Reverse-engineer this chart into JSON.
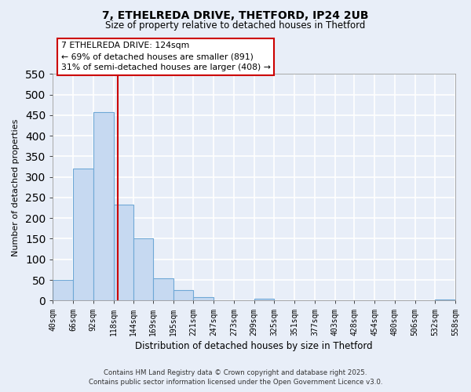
{
  "title": "7, ETHELREDA DRIVE, THETFORD, IP24 2UB",
  "subtitle": "Size of property relative to detached houses in Thetford",
  "xlabel": "Distribution of detached houses by size in Thetford",
  "ylabel": "Number of detached properties",
  "bar_edges": [
    40,
    66,
    92,
    118,
    144,
    169,
    195,
    221,
    247,
    273,
    299,
    325,
    351,
    377,
    403,
    428,
    454,
    480,
    506,
    532,
    558
  ],
  "bar_heights": [
    50,
    320,
    457,
    233,
    150,
    54,
    25,
    9,
    0,
    0,
    5,
    0,
    0,
    0,
    0,
    0,
    0,
    0,
    0,
    2
  ],
  "bar_color": "#c6d9f1",
  "bar_edgecolor": "#6fa8d6",
  "vline_x": 124,
  "vline_color": "#cc0000",
  "ylim": [
    0,
    550
  ],
  "yticks": [
    0,
    50,
    100,
    150,
    200,
    250,
    300,
    350,
    400,
    450,
    500,
    550
  ],
  "annotation_line1": "7 ETHELREDA DRIVE: 124sqm",
  "annotation_line2": "← 69% of detached houses are smaller (891)",
  "annotation_line3": "31% of semi-detached houses are larger (408) →",
  "footer_line1": "Contains HM Land Registry data © Crown copyright and database right 2025.",
  "footer_line2": "Contains public sector information licensed under the Open Government Licence v3.0.",
  "tick_labels": [
    "40sqm",
    "66sqm",
    "92sqm",
    "118sqm",
    "144sqm",
    "169sqm",
    "195sqm",
    "221sqm",
    "247sqm",
    "273sqm",
    "299sqm",
    "325sqm",
    "351sqm",
    "377sqm",
    "403sqm",
    "428sqm",
    "454sqm",
    "480sqm",
    "506sqm",
    "532sqm",
    "558sqm"
  ],
  "background_color": "#e8eef8",
  "plot_bg_color": "#e8eef8",
  "grid_color": "#ffffff"
}
